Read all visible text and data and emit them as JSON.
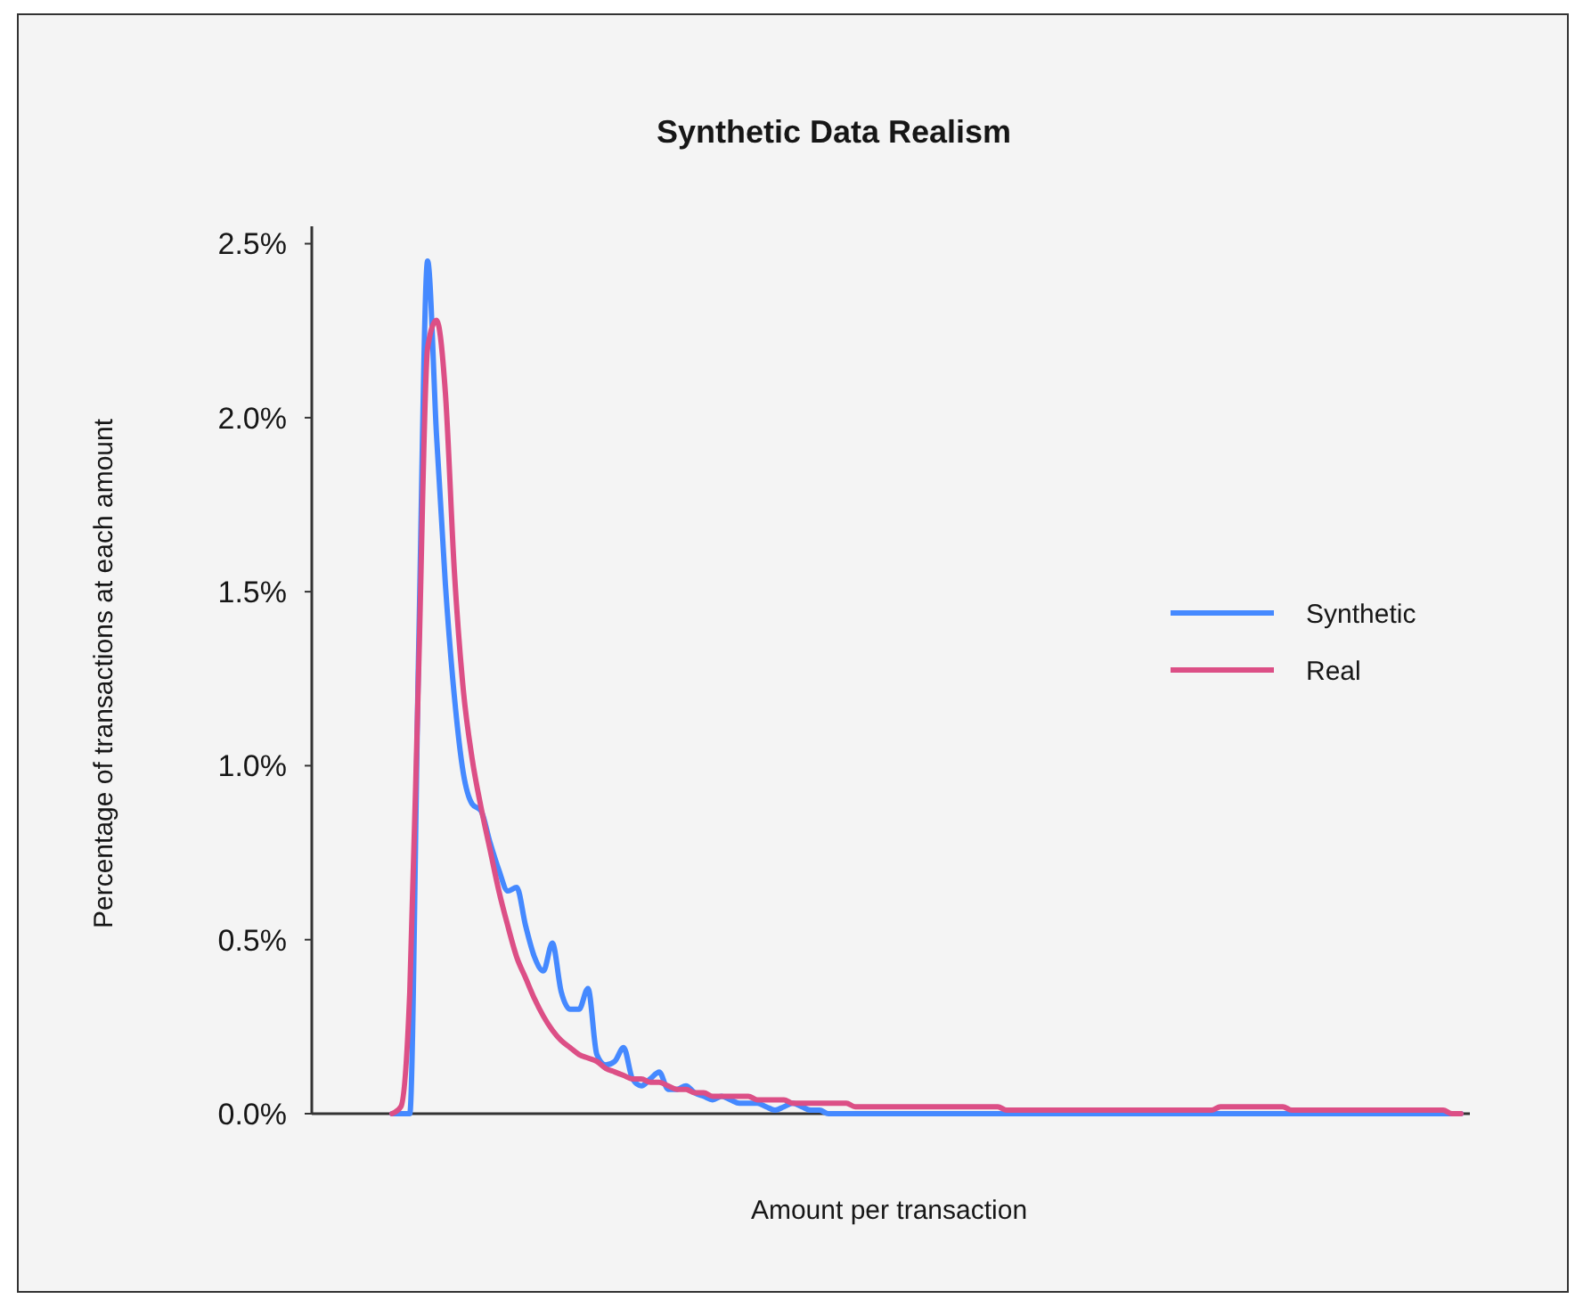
{
  "chart_data": {
    "type": "line",
    "title": "Synthetic Data Realism",
    "xlabel": "Amount per transaction",
    "ylabel": "Percentage of transactions at each amount",
    "categories": [
      null,
      null,
      null,
      null,
      null,
      null,
      null,
      null,
      null,
      null,
      null,
      null,
      null,
      null,
      null,
      null,
      null,
      null,
      null,
      null,
      null,
      null,
      null,
      null,
      null,
      null,
      null,
      null,
      null,
      null,
      null,
      null,
      null,
      null,
      null,
      null,
      null,
      null,
      null,
      null,
      null,
      null,
      null,
      null,
      null,
      null,
      null,
      null,
      null,
      null,
      null,
      null,
      null,
      null,
      null,
      null,
      null,
      null,
      null,
      null,
      null,
      null,
      null,
      null,
      null,
      null,
      null,
      null,
      null,
      null,
      null,
      null,
      null,
      null,
      null,
      null,
      null,
      null,
      null,
      null,
      null,
      null,
      null,
      null,
      null,
      null,
      null,
      null,
      null,
      null,
      null,
      null,
      null,
      null,
      null,
      null,
      null,
      null,
      null,
      null,
      null,
      null,
      null,
      null,
      null,
      null,
      null,
      null,
      null,
      null,
      null,
      null,
      null,
      null,
      null,
      null,
      null,
      null,
      null,
      null,
      null
    ],
    "series": [
      {
        "name": "Synthetic",
        "color": "#4589ff",
        "values": [
          0,
          0,
          0,
          1.34,
          2.45,
          1.95,
          1.52,
          1.2,
          0.98,
          0.89,
          0.87,
          0.78,
          0.7,
          0.64,
          0.65,
          0.54,
          0.45,
          0.41,
          0.49,
          0.35,
          0.3,
          0.3,
          0.36,
          0.17,
          0.14,
          0.15,
          0.19,
          0.1,
          0.08,
          0.1,
          0.12,
          0.07,
          0.07,
          0.08,
          0.06,
          0.05,
          0.04,
          0.05,
          0.04,
          0.03,
          0.03,
          0.03,
          0.02,
          0.01,
          0.02,
          0.03,
          0.02,
          0.01,
          0.01,
          0,
          0,
          0,
          0,
          0,
          0,
          0,
          0,
          0,
          0,
          0,
          0,
          0,
          0,
          0,
          0,
          0,
          0,
          0,
          0,
          0,
          0,
          0,
          0,
          0,
          0,
          0,
          0,
          0,
          0,
          0,
          0,
          0,
          0,
          0,
          0,
          0,
          0,
          0,
          0,
          0,
          0,
          0,
          0,
          0,
          0,
          0,
          0,
          0,
          0,
          0,
          0,
          0,
          0,
          0,
          0,
          0,
          0,
          0,
          0,
          0,
          0,
          0,
          0,
          0,
          0,
          0,
          0,
          0,
          0,
          0,
          0
        ]
      },
      {
        "name": "Real",
        "color": "#dc4f86",
        "values": [
          0,
          0.02,
          0.35,
          1.28,
          2.2,
          2.28,
          2.07,
          1.56,
          1.22,
          1.02,
          0.88,
          0.76,
          0.64,
          0.54,
          0.45,
          0.39,
          0.33,
          0.28,
          0.24,
          0.21,
          0.19,
          0.17,
          0.16,
          0.15,
          0.13,
          0.12,
          0.11,
          0.1,
          0.1,
          0.09,
          0.09,
          0.08,
          0.07,
          0.07,
          0.06,
          0.06,
          0.05,
          0.05,
          0.05,
          0.05,
          0.05,
          0.04,
          0.04,
          0.04,
          0.04,
          0.03,
          0.03,
          0.03,
          0.03,
          0.03,
          0.03,
          0.03,
          0.02,
          0.02,
          0.02,
          0.02,
          0.02,
          0.02,
          0.02,
          0.02,
          0.02,
          0.02,
          0.02,
          0.02,
          0.02,
          0.02,
          0.02,
          0.02,
          0.02,
          0.01,
          0.01,
          0.01,
          0.01,
          0.01,
          0.01,
          0.01,
          0.01,
          0.01,
          0.01,
          0.01,
          0.01,
          0.01,
          0.01,
          0.01,
          0.01,
          0.01,
          0.01,
          0.01,
          0.01,
          0.01,
          0.01,
          0.01,
          0.01,
          0.02,
          0.02,
          0.02,
          0.02,
          0.02,
          0.02,
          0.02,
          0.02,
          0.01,
          0.01,
          0.01,
          0.01,
          0.01,
          0.01,
          0.01,
          0.01,
          0.01,
          0.01,
          0.01,
          0.01,
          0.01,
          0.01,
          0.01,
          0.01,
          0.01,
          0.01,
          0,
          0
        ]
      }
    ],
    "ylim": [
      0,
      2.55
    ],
    "yticks": [
      {
        "value": 0,
        "label": "0.0%"
      },
      {
        "value": 0.5,
        "label": "0.5%"
      },
      {
        "value": 1,
        "label": "1.0%"
      },
      {
        "value": 1.5,
        "label": "1.5%"
      },
      {
        "value": 2,
        "label": "2.0%"
      },
      {
        "value": 2.5,
        "label": "2.5%"
      }
    ],
    "legend": "right"
  }
}
